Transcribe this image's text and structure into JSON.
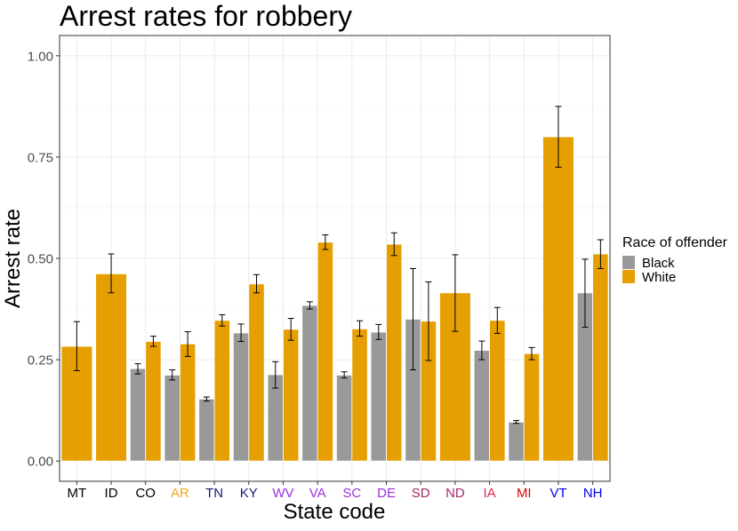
{
  "chart_data": {
    "type": "bar",
    "title": "Arrest rates for robbery",
    "xlabel": "State code",
    "ylabel": "Arrest rate",
    "ylim": [
      -0.05,
      1.05
    ],
    "yticks": [
      0.0,
      0.25,
      0.5,
      0.75,
      1.0
    ],
    "ytick_labels": [
      "0.00",
      "0.25",
      "0.50",
      "0.75",
      "1.00"
    ],
    "grid": true,
    "legend": {
      "title": "Race of offender",
      "placement": "right",
      "entries": [
        "Black",
        "White"
      ]
    },
    "colors": {
      "Black": "#999999",
      "White": "#E69F00"
    },
    "categories": [
      "MT",
      "ID",
      "CO",
      "AR",
      "TN",
      "KY",
      "WV",
      "VA",
      "SC",
      "DE",
      "SD",
      "ND",
      "IA",
      "MI",
      "VT",
      "NH"
    ],
    "category_colors": [
      "#000000",
      "#000000",
      "#000000",
      "#F5A623",
      "#1A1A7A",
      "#1A1A7A",
      "#9B30D9",
      "#9B30D9",
      "#9B30D9",
      "#9B30D9",
      "#A52A6A",
      "#A52A6A",
      "#D62A4A",
      "#E00000",
      "#0000EE",
      "#0000EE"
    ],
    "series": [
      {
        "name": "Black",
        "values": [
          null,
          null,
          0.228,
          0.212,
          0.153,
          0.316,
          0.213,
          0.384,
          0.212,
          0.318,
          0.35,
          null,
          0.273,
          0.096,
          null,
          0.415
        ],
        "err_low": [
          null,
          null,
          0.215,
          0.2,
          0.148,
          0.295,
          0.18,
          0.375,
          0.205,
          0.3,
          0.225,
          null,
          0.25,
          0.093,
          null,
          0.33
        ],
        "err_high": [
          null,
          null,
          0.24,
          0.225,
          0.158,
          0.338,
          0.245,
          0.393,
          0.22,
          0.337,
          0.475,
          null,
          0.296,
          0.1,
          null,
          0.498
        ]
      },
      {
        "name": "White",
        "values": [
          0.283,
          0.462,
          0.295,
          0.289,
          0.347,
          0.437,
          0.325,
          0.54,
          0.326,
          0.535,
          0.345,
          0.415,
          0.347,
          0.265,
          0.8,
          0.511
        ],
        "err_low": [
          0.223,
          0.415,
          0.283,
          0.258,
          0.333,
          0.415,
          0.298,
          0.522,
          0.308,
          0.507,
          0.248,
          0.32,
          0.315,
          0.25,
          0.725,
          0.475
        ],
        "err_high": [
          0.344,
          0.511,
          0.308,
          0.319,
          0.361,
          0.46,
          0.352,
          0.558,
          0.346,
          0.563,
          0.442,
          0.509,
          0.379,
          0.28,
          0.875,
          0.546
        ]
      }
    ]
  }
}
